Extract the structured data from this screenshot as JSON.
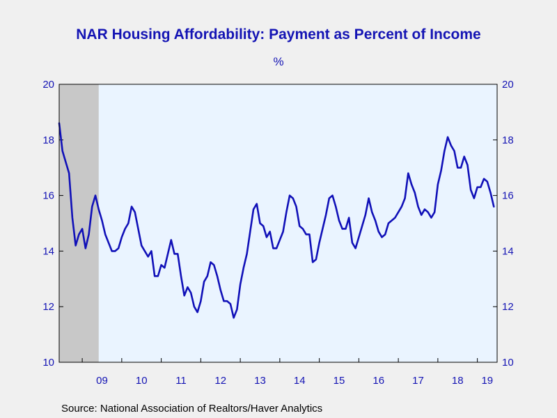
{
  "chart_data": {
    "type": "line",
    "title": "NAR Housing Affordability: Payment as Percent of Income",
    "subtitle": "%",
    "source": "Source:  National Association of Realtors/Haver Analytics",
    "ylim": [
      10,
      20
    ],
    "yticks": [
      10,
      12,
      14,
      16,
      18,
      20
    ],
    "ytick_labels": [
      "10",
      "12",
      "14",
      "16",
      "18",
      "20"
    ],
    "x_start": "2008-06",
    "x_end": "2019-07",
    "xtick_labels": [
      "09",
      "10",
      "11",
      "12",
      "13",
      "14",
      "15",
      "16",
      "17",
      "18",
      "19"
    ],
    "recession_shading": {
      "start": "2008-06",
      "end": "2009-06",
      "color": "#c8c8c8"
    },
    "grid": false,
    "plot_background": "#eaf4ff",
    "line_color": "#1010b8",
    "series": [
      {
        "frequency": "monthly",
        "start": "2008-06",
        "values": [
          18.6,
          17.6,
          17.2,
          16.8,
          15.2,
          14.2,
          14.6,
          14.8,
          14.1,
          14.6,
          15.6,
          16.0,
          15.5,
          15.1,
          14.6,
          14.3,
          14.0,
          14.0,
          14.1,
          14.5,
          14.8,
          15.0,
          15.6,
          15.4,
          14.8,
          14.2,
          14.0,
          13.8,
          14.0,
          13.1,
          13.1,
          13.5,
          13.4,
          13.9,
          14.4,
          13.9,
          13.9,
          13.1,
          12.4,
          12.7,
          12.5,
          12.0,
          11.8,
          12.2,
          12.9,
          13.1,
          13.6,
          13.5,
          13.1,
          12.6,
          12.2,
          12.2,
          12.1,
          11.6,
          11.9,
          12.8,
          13.4,
          13.9,
          14.7,
          15.5,
          15.7,
          15.0,
          14.9,
          14.5,
          14.7,
          14.1,
          14.1,
          14.4,
          14.7,
          15.4,
          16.0,
          15.9,
          15.6,
          14.9,
          14.8,
          14.6,
          14.6,
          13.6,
          13.7,
          14.3,
          14.8,
          15.3,
          15.9,
          16.0,
          15.6,
          15.1,
          14.8,
          14.8,
          15.2,
          14.3,
          14.1,
          14.5,
          14.9,
          15.3,
          15.9,
          15.4,
          15.1,
          14.7,
          14.5,
          14.6,
          15.0,
          15.1,
          15.2,
          15.4,
          15.6,
          15.9,
          16.8,
          16.4,
          16.1,
          15.6,
          15.3,
          15.5,
          15.4,
          15.2,
          15.4,
          16.4,
          16.9,
          17.6,
          18.1,
          17.8,
          17.6,
          17.0,
          17.0,
          17.4,
          17.1,
          16.2,
          15.9,
          16.3,
          16.3,
          16.6,
          16.5,
          16.1,
          15.6
        ]
      }
    ]
  }
}
